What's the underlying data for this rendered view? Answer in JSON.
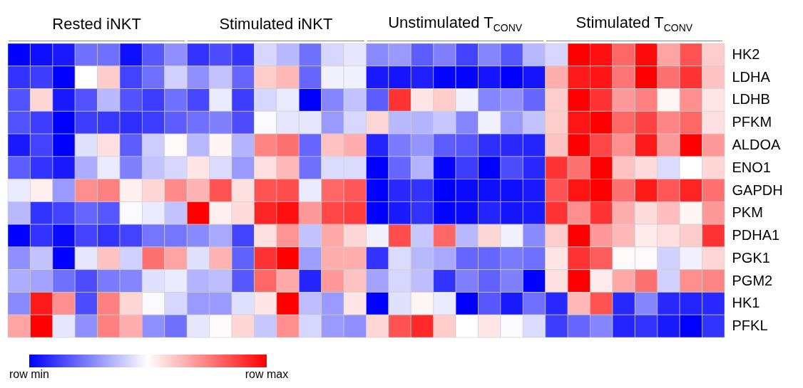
{
  "chart_data": {
    "type": "heatmap",
    "annotations": [
      "Rested iNKT",
      "Stimulated iNKT",
      "Unstimulated T$_{CONV}$",
      "Stimulated T$_{CONV}$"
    ],
    "categories": [
      null,
      null,
      null,
      null,
      null,
      null,
      null,
      null,
      null,
      null,
      null,
      null,
      null,
      null,
      null,
      null,
      null,
      null,
      null,
      null,
      null,
      null,
      null,
      null,
      null,
      null,
      null,
      null,
      null,
      null,
      null,
      null
    ],
    "y_categories": [
      "HK2",
      "LDHA",
      "LDHB",
      "PFKM",
      "ALDOA",
      "ENO1",
      "GAPDH",
      "PKM",
      "PDHA1",
      "PGK1",
      "PGM2",
      "HK1",
      "PFKL"
    ],
    "cells": [
      [
        0,
        0.03,
        0.05,
        0.22,
        0.22,
        0.03,
        0.17,
        0.28,
        0.1,
        0.15,
        0.1,
        0.42,
        0.36,
        0.22,
        0.42,
        0.45,
        0.27,
        0.3,
        0.18,
        0.25,
        0.13,
        0.26,
        0.17,
        0.36,
        0.42,
        1,
        0.97,
        0.8,
        0.98,
        0.68,
        0.84,
        0.6
      ],
      [
        0.1,
        0.12,
        0,
        0.5,
        0.6,
        0.13,
        0.22,
        0.41,
        0.28,
        0.38,
        0.2,
        0.6,
        0.64,
        0.2,
        0.47,
        0.47,
        0.05,
        0.04,
        0.06,
        0.01,
        0.01,
        0.04,
        0,
        0.04,
        0.66,
        0.95,
        0.96,
        0.77,
        1,
        0.78,
        0.9,
        0.62
      ],
      [
        0.16,
        0.58,
        0.05,
        0.16,
        0.36,
        0.16,
        0.12,
        0.22,
        0.14,
        0.46,
        0.12,
        0.42,
        0.46,
        0,
        0.26,
        0.38,
        0.18,
        0.9,
        0.55,
        0.6,
        0.47,
        0.26,
        0.28,
        0.2,
        0.6,
        1,
        0.9,
        0.7,
        0.75,
        0.52,
        0.72,
        0.55
      ],
      [
        0.16,
        0.12,
        0,
        0.12,
        0.11,
        0.09,
        0.12,
        0.18,
        0.22,
        0.25,
        0.15,
        0.49,
        0.45,
        0.45,
        0.3,
        0.42,
        0.58,
        0.36,
        0.35,
        0.39,
        0.26,
        0.47,
        0.3,
        0.38,
        0.6,
        0.96,
        1,
        0.8,
        0.87,
        0.74,
        0.8,
        0.56
      ],
      [
        0.05,
        0.13,
        0,
        0.44,
        0.56,
        0.18,
        0.4,
        0.51,
        0.36,
        0.52,
        0.35,
        0.74,
        0.78,
        0.2,
        0.62,
        0.66,
        0.07,
        0.24,
        0.29,
        0.18,
        0.17,
        0.09,
        0.08,
        0.07,
        0.62,
        1,
        0.86,
        0.72,
        0.95,
        0.7,
        1,
        0.7
      ],
      [
        0.18,
        0.1,
        0.05,
        0.34,
        0.46,
        0.25,
        0.38,
        0.42,
        0.55,
        0.43,
        0.3,
        0.56,
        0.64,
        0.22,
        0.43,
        0.43,
        0,
        0.2,
        0.35,
        0.01,
        0.12,
        0,
        0.15,
        0.08,
        0.9,
        0.78,
        1,
        0.62,
        0.57,
        0.43,
        0.5,
        0.58
      ],
      [
        0.46,
        0.53,
        0.3,
        0.72,
        0.75,
        0.53,
        0.58,
        0.73,
        0.65,
        0.84,
        0.56,
        0.84,
        0.85,
        0.46,
        0.8,
        0.83,
        0,
        0.08,
        0.1,
        0,
        0.02,
        0.03,
        0.03,
        0.05,
        0.84,
        0.96,
        1,
        0.78,
        0.95,
        0.83,
        0.93,
        0.78
      ],
      [
        0.36,
        0.1,
        0.13,
        0.2,
        0.17,
        0.49,
        0.46,
        0.38,
        1,
        0.53,
        0.57,
        0.93,
        0.97,
        0.7,
        0.86,
        0.88,
        0,
        0.05,
        0.1,
        0.01,
        0.02,
        0.07,
        0.04,
        0.05,
        0.9,
        0.72,
        0.9,
        0.66,
        0.57,
        0.63,
        0.52,
        0.7
      ],
      [
        0,
        0.1,
        0.02,
        0.13,
        0.1,
        0.13,
        0.23,
        0.23,
        0.27,
        0.33,
        0.13,
        0.56,
        0.71,
        0.38,
        0.67,
        0.58,
        0.47,
        0.85,
        0.39,
        0.8,
        0.36,
        0.58,
        0.47,
        0.27,
        0.6,
        1,
        0.7,
        0.64,
        0.54,
        0.56,
        0.6,
        0.9
      ],
      [
        0.28,
        0.38,
        0,
        0.45,
        0.62,
        0.41,
        0.78,
        0.68,
        0.44,
        0.65,
        0.19,
        0.9,
        1,
        0.31,
        0.66,
        0.66,
        0.1,
        0.43,
        0.36,
        0.33,
        0.2,
        0.2,
        0.24,
        0.22,
        0.55,
        0.9,
        0.82,
        0.51,
        0.51,
        0.41,
        0.47,
        0.58
      ],
      [
        0.34,
        0.32,
        0.22,
        0.15,
        0.24,
        0.26,
        0.44,
        0.46,
        0.35,
        0.37,
        0.17,
        0.8,
        0.67,
        0.07,
        0.7,
        0.62,
        0.32,
        0.42,
        0.37,
        0.1,
        0.25,
        0.19,
        0.25,
        0,
        0.56,
        1,
        0.54,
        0.67,
        0.78,
        0.41,
        0.72,
        0.74
      ],
      [
        0.27,
        0.95,
        0.72,
        0.15,
        0.75,
        0.58,
        0.49,
        0.42,
        0.3,
        0.3,
        0.44,
        0.55,
        1,
        0.37,
        0.3,
        0.55,
        0,
        0.44,
        0.52,
        0.46,
        0,
        0.17,
        0.05,
        0.22,
        0.08,
        0.64,
        0.84,
        0.08,
        0.26,
        0.08,
        0.07,
        0.08
      ],
      [
        0.68,
        1,
        0.45,
        0.28,
        0.75,
        0.66,
        0.28,
        0.22,
        0.45,
        0.51,
        0.58,
        0.39,
        0.72,
        0.42,
        0.3,
        0.28,
        0.58,
        0.84,
        0.92,
        0.6,
        0.5,
        0.55,
        0.49,
        0.43,
        0.12,
        0.2,
        0.26,
        0.07,
        0.1,
        0.05,
        0,
        0.1
      ]
    ],
    "clim": [
      0,
      1
    ],
    "cticks": [
      {
        "value": 0,
        "label": "row min"
      },
      {
        "value": 1,
        "label": "row max"
      }
    ]
  }
}
